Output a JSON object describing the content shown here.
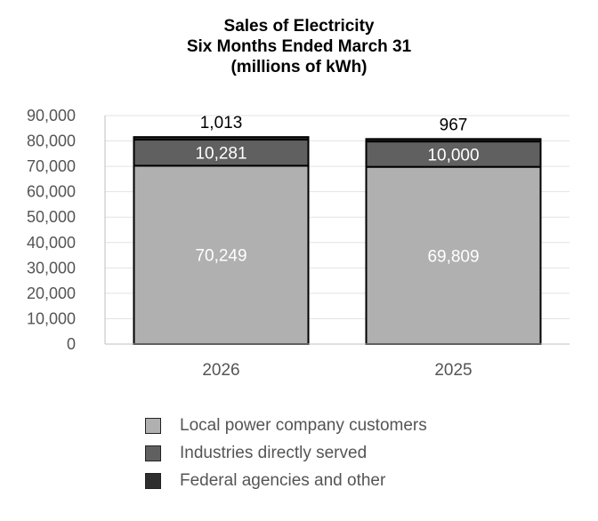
{
  "chart_data": {
    "type": "bar",
    "stacked": true,
    "title": [
      "Sales of Electricity",
      "Six Months Ended March 31",
      "(millions of kWh)"
    ],
    "categories": [
      "2026",
      "2025"
    ],
    "series": [
      {
        "name": "Local power company customers",
        "values": [
          70249,
          69809
        ],
        "labels": [
          "70,249",
          "69,809"
        ],
        "color": "#b0b0b0",
        "label_color": "#ffffff"
      },
      {
        "name": "Industries directly served",
        "values": [
          10281,
          10000
        ],
        "labels": [
          "10,281",
          "10,000"
        ],
        "color": "#606060",
        "label_color": "#ffffff"
      },
      {
        "name": "Federal agencies and other",
        "values": [
          1013,
          967
        ],
        "labels": [
          "1,013",
          "967"
        ],
        "color": "#2e2e2e",
        "label_color": "#000000"
      }
    ],
    "y_ticks": [
      "0",
      "10,000",
      "20,000",
      "30,000",
      "40,000",
      "50,000",
      "60,000",
      "70,000",
      "80,000",
      "90,000"
    ],
    "ylim": [
      0,
      90000
    ],
    "grid": true,
    "legend_position": "bottom"
  }
}
